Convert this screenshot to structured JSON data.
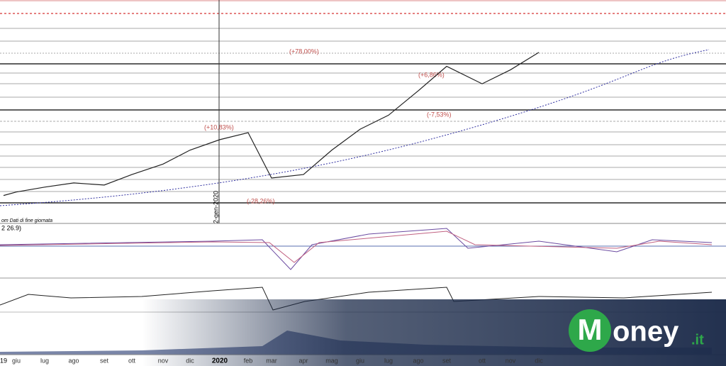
{
  "chart_data": {
    "type": "line",
    "categories": [
      "19",
      "giu",
      "lug",
      "ago",
      "set",
      "ott",
      "nov",
      "dic",
      "2020",
      "feb",
      "mar",
      "apr",
      "mag",
      "giu",
      "lug",
      "ago",
      "set",
      "ott",
      "nov",
      "dic"
    ],
    "values": [
      40,
      45,
      52,
      58,
      55,
      70,
      85,
      105,
      120,
      130,
      65,
      70,
      105,
      135,
      155,
      190,
      225,
      200,
      220,
      245
    ],
    "color": "#222222",
    "ylim": [
      0,
      320
    ],
    "annotations": [
      "(+10,83%)",
      "(-28,26%)",
      "(+78,00%)",
      "(+6,86%)",
      "(-7,53%)"
    ],
    "date_marker": "2-gen-2020",
    "source_note": "om Dati di fine giornata",
    "indicator_label": "2 26.9)"
  },
  "logo": {
    "initial": "M",
    "rest": "oney",
    "tld": ".it"
  }
}
